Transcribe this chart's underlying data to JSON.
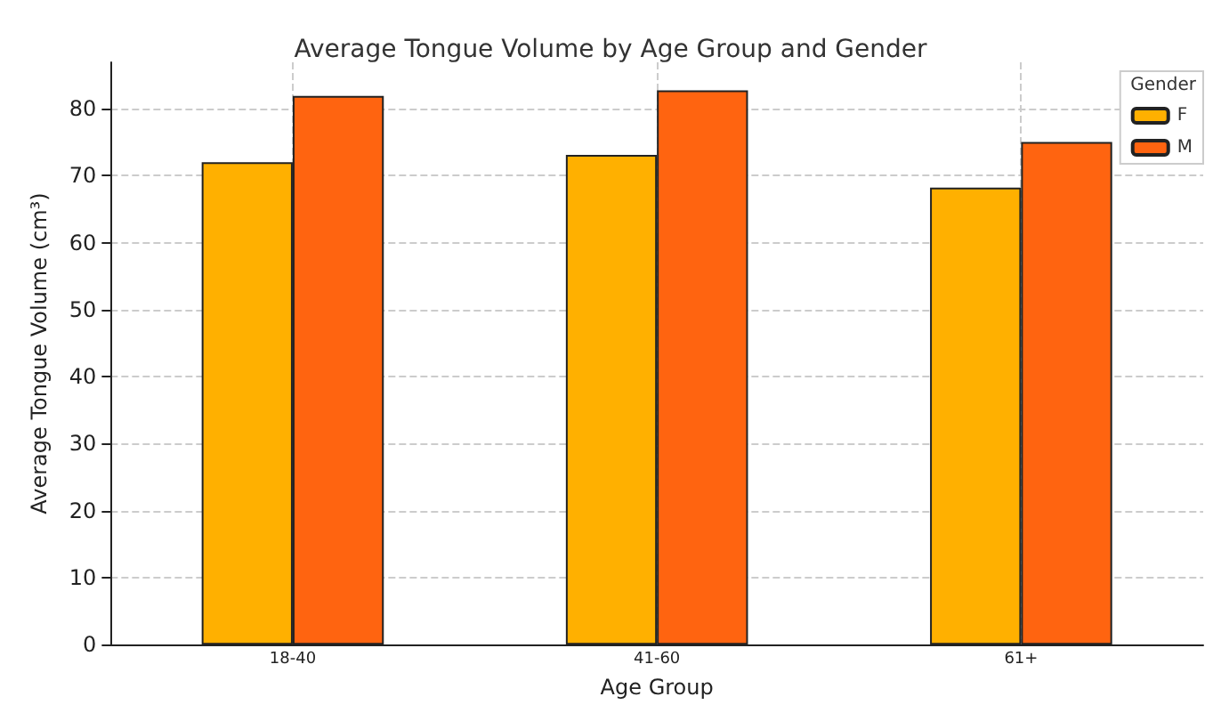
{
  "chart_data": {
    "type": "bar",
    "title": "Average Tongue Volume by Age Group and Gender",
    "xlabel": "Age Group",
    "ylabel": "Average Tongue Volume (cm³)",
    "legend_title": "Gender",
    "categories": [
      "18-40",
      "41-60",
      "61+"
    ],
    "series": [
      {
        "name": "F",
        "color": "#ffb000",
        "values": [
          72.0,
          73.1,
          68.2
        ]
      },
      {
        "name": "M",
        "color": "#ff6410",
        "values": [
          81.9,
          82.7,
          75.0
        ]
      }
    ],
    "ylim": [
      0,
      86.9
    ],
    "yticks": [
      0,
      10,
      20,
      30,
      40,
      50,
      60,
      70,
      80
    ],
    "grid": true,
    "legend": "top right"
  }
}
